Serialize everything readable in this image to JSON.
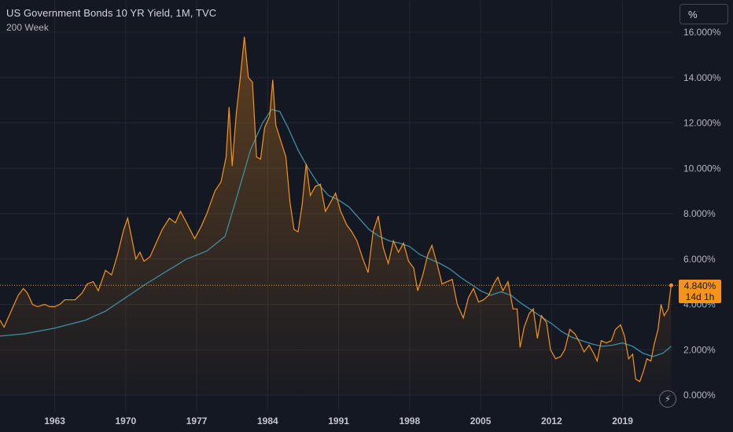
{
  "header": {
    "title": "US Government Bonds 10 YR Yield, 1M, TVC",
    "ma_label": "200 Week",
    "unit_button": "%"
  },
  "colors": {
    "background": "#141823",
    "yield_line": "#f7931a",
    "ma_line": "#3d8ea3",
    "grid": "#232734"
  },
  "price_label": {
    "value": "4.840%",
    "countdown": "14d 1h"
  },
  "bolt_icon": "lightning-icon",
  "chart_data": {
    "type": "area",
    "title": "US Government Bonds 10 YR Yield, 1M, TVC",
    "y_ticks": [
      "0.000%",
      "2.000%",
      "4.000%",
      "6.000%",
      "8.000%",
      "10.000%",
      "12.000%",
      "14.000%",
      "16.000%"
    ],
    "x_ticks": [
      "1963",
      "1970",
      "1977",
      "1984",
      "1991",
      "1998",
      "2005",
      "2012",
      "2019"
    ],
    "ylim": [
      0,
      16
    ],
    "xlim": [
      1957.6,
      2024.0
    ],
    "grid": true,
    "last_value": 4.84,
    "series": [
      {
        "name": "US Government Bonds 10 YR Yield",
        "type": "area",
        "points": [
          [
            1957.6,
            3.3
          ],
          [
            1958.0,
            3.0
          ],
          [
            1958.5,
            3.5
          ],
          [
            1959.0,
            4.0
          ],
          [
            1959.4,
            4.4
          ],
          [
            1959.9,
            4.7
          ],
          [
            1960.3,
            4.5
          ],
          [
            1960.8,
            4.0
          ],
          [
            1961.3,
            3.9
          ],
          [
            1962.0,
            4.0
          ],
          [
            1962.5,
            3.9
          ],
          [
            1963.0,
            3.9
          ],
          [
            1963.5,
            4.0
          ],
          [
            1964.0,
            4.2
          ],
          [
            1965.0,
            4.2
          ],
          [
            1965.7,
            4.5
          ],
          [
            1966.2,
            4.9
          ],
          [
            1966.8,
            5.0
          ],
          [
            1967.3,
            4.6
          ],
          [
            1968.0,
            5.5
          ],
          [
            1968.6,
            5.3
          ],
          [
            1969.2,
            6.2
          ],
          [
            1969.8,
            7.3
          ],
          [
            1970.2,
            7.8
          ],
          [
            1970.6,
            6.9
          ],
          [
            1971.0,
            6.0
          ],
          [
            1971.4,
            6.3
          ],
          [
            1971.8,
            5.9
          ],
          [
            1972.4,
            6.1
          ],
          [
            1973.0,
            6.7
          ],
          [
            1973.6,
            7.3
          ],
          [
            1974.3,
            7.8
          ],
          [
            1974.9,
            7.6
          ],
          [
            1975.4,
            8.1
          ],
          [
            1976.0,
            7.6
          ],
          [
            1976.8,
            6.9
          ],
          [
            1977.4,
            7.4
          ],
          [
            1978.0,
            8.0
          ],
          [
            1978.8,
            9.0
          ],
          [
            1979.4,
            9.4
          ],
          [
            1979.9,
            10.5
          ],
          [
            1980.2,
            12.7
          ],
          [
            1980.5,
            10.1
          ],
          [
            1980.9,
            12.4
          ],
          [
            1981.3,
            14.0
          ],
          [
            1981.7,
            15.8
          ],
          [
            1982.1,
            14.0
          ],
          [
            1982.5,
            13.8
          ],
          [
            1982.9,
            10.5
          ],
          [
            1983.3,
            10.4
          ],
          [
            1983.7,
            11.8
          ],
          [
            1984.2,
            12.3
          ],
          [
            1984.5,
            13.9
          ],
          [
            1984.8,
            11.9
          ],
          [
            1985.3,
            11.2
          ],
          [
            1985.8,
            10.5
          ],
          [
            1986.2,
            8.5
          ],
          [
            1986.6,
            7.3
          ],
          [
            1987.0,
            7.2
          ],
          [
            1987.4,
            8.4
          ],
          [
            1987.8,
            10.2
          ],
          [
            1988.2,
            8.8
          ],
          [
            1988.7,
            9.2
          ],
          [
            1989.2,
            9.3
          ],
          [
            1989.7,
            8.1
          ],
          [
            1990.2,
            8.5
          ],
          [
            1990.7,
            8.9
          ],
          [
            1991.2,
            8.1
          ],
          [
            1991.8,
            7.5
          ],
          [
            1992.3,
            7.2
          ],
          [
            1992.8,
            6.8
          ],
          [
            1993.4,
            6.0
          ],
          [
            1993.9,
            5.4
          ],
          [
            1994.4,
            7.2
          ],
          [
            1994.9,
            7.9
          ],
          [
            1995.4,
            6.5
          ],
          [
            1995.9,
            5.8
          ],
          [
            1996.4,
            6.8
          ],
          [
            1996.9,
            6.3
          ],
          [
            1997.4,
            6.7
          ],
          [
            1997.9,
            5.9
          ],
          [
            1998.4,
            5.6
          ],
          [
            1998.8,
            4.6
          ],
          [
            1999.3,
            5.3
          ],
          [
            1999.8,
            6.2
          ],
          [
            2000.2,
            6.6
          ],
          [
            2000.7,
            5.8
          ],
          [
            2001.2,
            4.9
          ],
          [
            2001.7,
            5.0
          ],
          [
            2002.2,
            5.1
          ],
          [
            2002.7,
            4.0
          ],
          [
            2003.3,
            3.4
          ],
          [
            2003.8,
            4.3
          ],
          [
            2004.3,
            4.7
          ],
          [
            2004.8,
            4.1
          ],
          [
            2005.3,
            4.2
          ],
          [
            2005.8,
            4.4
          ],
          [
            2006.3,
            4.9
          ],
          [
            2006.7,
            5.2
          ],
          [
            2007.2,
            4.6
          ],
          [
            2007.7,
            5.0
          ],
          [
            2008.2,
            3.8
          ],
          [
            2008.6,
            3.8
          ],
          [
            2008.9,
            2.1
          ],
          [
            2009.3,
            3.0
          ],
          [
            2009.8,
            3.6
          ],
          [
            2010.2,
            3.8
          ],
          [
            2010.6,
            2.5
          ],
          [
            2011.0,
            3.5
          ],
          [
            2011.5,
            3.2
          ],
          [
            2011.9,
            2.0
          ],
          [
            2012.4,
            1.6
          ],
          [
            2012.9,
            1.7
          ],
          [
            2013.3,
            2.0
          ],
          [
            2013.8,
            2.9
          ],
          [
            2014.3,
            2.7
          ],
          [
            2014.8,
            2.3
          ],
          [
            2015.2,
            1.9
          ],
          [
            2015.7,
            2.2
          ],
          [
            2016.2,
            1.8
          ],
          [
            2016.5,
            1.5
          ],
          [
            2016.9,
            2.4
          ],
          [
            2017.4,
            2.3
          ],
          [
            2017.9,
            2.4
          ],
          [
            2018.3,
            2.9
          ],
          [
            2018.8,
            3.1
          ],
          [
            2019.2,
            2.6
          ],
          [
            2019.6,
            1.6
          ],
          [
            2020.0,
            1.8
          ],
          [
            2020.3,
            0.7
          ],
          [
            2020.7,
            0.6
          ],
          [
            2021.1,
            1.1
          ],
          [
            2021.4,
            1.6
          ],
          [
            2021.8,
            1.5
          ],
          [
            2022.1,
            2.2
          ],
          [
            2022.5,
            2.9
          ],
          [
            2022.8,
            4.0
          ],
          [
            2023.1,
            3.5
          ],
          [
            2023.5,
            3.8
          ],
          [
            2023.8,
            4.84
          ]
        ]
      },
      {
        "name": "200 Week",
        "type": "line",
        "points": [
          [
            1957.6,
            2.6
          ],
          [
            1960.0,
            2.7
          ],
          [
            1963.0,
            2.95
          ],
          [
            1966.0,
            3.3
          ],
          [
            1968.0,
            3.7
          ],
          [
            1970.0,
            4.3
          ],
          [
            1972.0,
            4.9
          ],
          [
            1974.0,
            5.45
          ],
          [
            1976.0,
            6.0
          ],
          [
            1978.0,
            6.35
          ],
          [
            1979.8,
            7.0
          ],
          [
            1981.0,
            8.8
          ],
          [
            1982.3,
            10.8
          ],
          [
            1983.5,
            12.0
          ],
          [
            1984.4,
            12.6
          ],
          [
            1985.2,
            12.5
          ],
          [
            1986.0,
            11.8
          ],
          [
            1987.0,
            10.8
          ],
          [
            1988.0,
            10.0
          ],
          [
            1989.0,
            9.3
          ],
          [
            1990.0,
            8.8
          ],
          [
            1991.0,
            8.6
          ],
          [
            1992.0,
            8.3
          ],
          [
            1993.0,
            7.8
          ],
          [
            1994.0,
            7.3
          ],
          [
            1995.0,
            7.0
          ],
          [
            1996.0,
            6.8
          ],
          [
            1997.0,
            6.7
          ],
          [
            1998.0,
            6.55
          ],
          [
            1999.0,
            6.2
          ],
          [
            2000.0,
            6.0
          ],
          [
            2001.0,
            5.8
          ],
          [
            2002.0,
            5.55
          ],
          [
            2003.0,
            5.2
          ],
          [
            2004.0,
            4.9
          ],
          [
            2005.0,
            4.6
          ],
          [
            2006.0,
            4.4
          ],
          [
            2007.0,
            4.55
          ],
          [
            2008.0,
            4.4
          ],
          [
            2009.0,
            4.05
          ],
          [
            2010.0,
            3.75
          ],
          [
            2011.0,
            3.45
          ],
          [
            2012.0,
            3.15
          ],
          [
            2013.0,
            2.8
          ],
          [
            2014.0,
            2.55
          ],
          [
            2015.0,
            2.4
          ],
          [
            2016.0,
            2.25
          ],
          [
            2017.0,
            2.15
          ],
          [
            2018.0,
            2.2
          ],
          [
            2019.0,
            2.3
          ],
          [
            2020.0,
            2.15
          ],
          [
            2021.0,
            1.85
          ],
          [
            2022.0,
            1.7
          ],
          [
            2023.0,
            1.85
          ],
          [
            2023.8,
            2.15
          ]
        ]
      }
    ]
  }
}
